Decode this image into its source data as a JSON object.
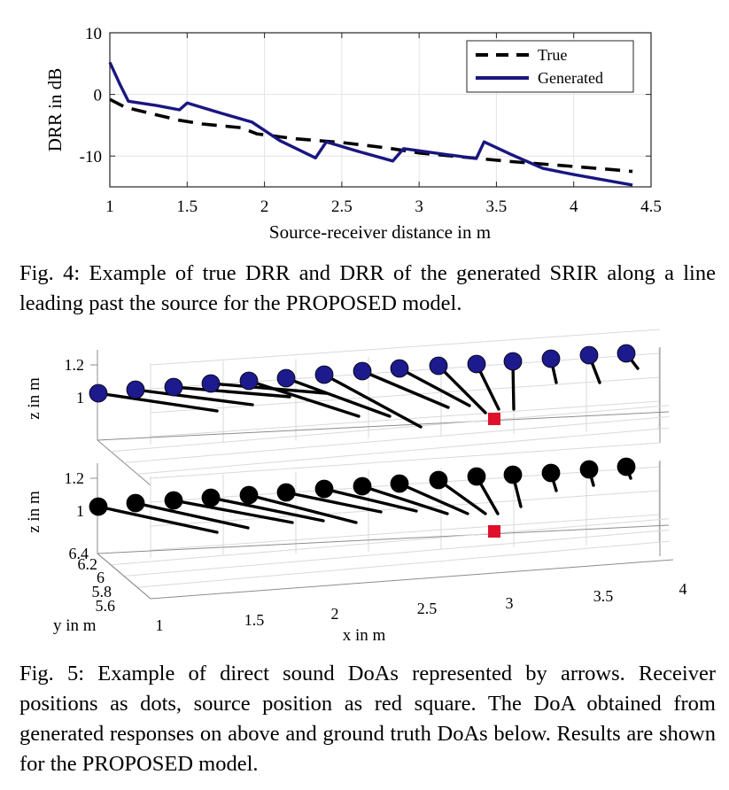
{
  "chart_data": [
    {
      "type": "line",
      "xlabel": "Source-receiver distance in m",
      "ylabel": "DRR in dB",
      "xlim": [
        1,
        4.5
      ],
      "ylim": [
        -15,
        10
      ],
      "xticks": [
        "1",
        "1.5",
        "2",
        "2.5",
        "3",
        "3.5",
        "4",
        "4.5"
      ],
      "yticks": [
        "10",
        "0",
        "-10"
      ],
      "grid": true,
      "legend_position": "top-right",
      "series": [
        {
          "name": "True",
          "style": "dashed",
          "color": "#000000",
          "x": [
            1.0,
            1.1,
            1.3,
            1.45,
            1.6,
            1.85,
            1.95,
            2.2,
            2.5,
            2.8,
            3.0,
            3.3,
            3.6,
            3.9,
            4.2,
            4.38
          ],
          "y": [
            -0.8,
            -2.1,
            -3.3,
            -4.2,
            -4.8,
            -5.4,
            -6.4,
            -7.2,
            -7.8,
            -8.7,
            -9.5,
            -10.2,
            -10.9,
            -11.5,
            -12.1,
            -12.5
          ]
        },
        {
          "name": "Generated",
          "style": "solid",
          "color": "#1a1680",
          "x": [
            1.0,
            1.07,
            1.12,
            1.3,
            1.45,
            1.5,
            1.7,
            1.92,
            2.1,
            2.33,
            2.4,
            2.6,
            2.83,
            2.9,
            3.1,
            3.37,
            3.42,
            3.6,
            3.8,
            4.0,
            4.2,
            4.38
          ],
          "y": [
            5.2,
            1.4,
            -1.1,
            -1.8,
            -2.5,
            -1.4,
            -2.9,
            -4.5,
            -7.5,
            -10.3,
            -7.7,
            -9.2,
            -10.8,
            -8.8,
            -9.5,
            -10.4,
            -7.7,
            -9.8,
            -12.0,
            -13.0,
            -13.9,
            -14.7
          ]
        }
      ]
    },
    {
      "type": "scatter",
      "subtype": "3d-arrow-field",
      "xlabel": "x in m",
      "ylabel": "y in m",
      "zlabel": "z in m",
      "xticks": [
        "1",
        "1.5",
        "2",
        "2.5",
        "3",
        "3.5",
        "4"
      ],
      "yticks": [
        "5.6",
        "5.8",
        "6",
        "6.2",
        "6.4"
      ],
      "zticks": [
        "1",
        "1.2"
      ],
      "grid": true,
      "source_marker": "red square",
      "source_color": "#e0102a",
      "panels": [
        {
          "name": "generated",
          "marker_color": "#1c1a8c"
        },
        {
          "name": "ground-truth",
          "marker_color": "#000000"
        }
      ]
    }
  ],
  "captions": {
    "fig4": "Fig. 4: Example of true DRR and DRR of the generated SRIR along a line leading past the source for the PROPOSED model.",
    "fig5": "Fig. 5: Example of direct sound DoAs represented by arrows. Receiver positions as dots, source position as red square. The DoA obtained from generated responses on above and ground truth DoAs below. Results are shown for the PROPOSED model."
  }
}
